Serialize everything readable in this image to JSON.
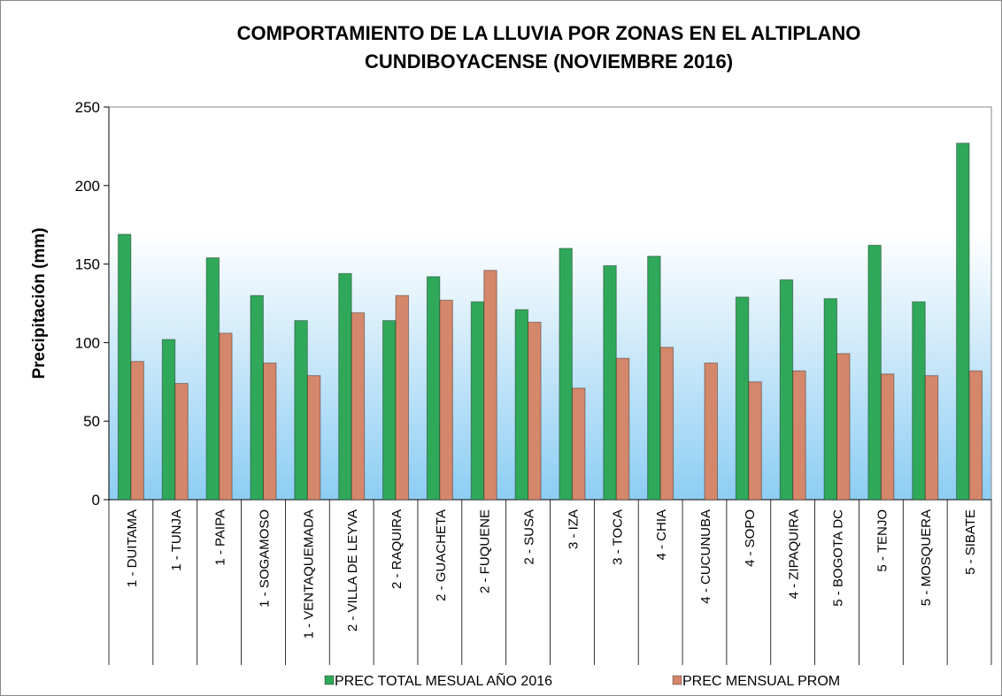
{
  "chart_data": {
    "type": "bar",
    "title": [
      "COMPORTAMIENTO DE LA LLUVIA POR ZONAS EN EL ALTIPLANO",
      "CUNDIBOYACENSE (NOVIEMBRE 2016)"
    ],
    "y_label": "Precipitación  (mm)",
    "categories": [
      "1 - DUITAMA",
      "1 - TUNJA",
      "1 - PAIPA",
      "1 - SOGAMOSO",
      "1 - VENTAQUEMADA",
      "2 - VILLA DE LEYVA",
      "2 - RAQUIRA",
      "2 - GUACHETA",
      "2 - FUQUENE",
      "2 - SUSA",
      "3 - IZA",
      "3 - TOCA",
      "4 - CHIA",
      "4 - CUCUNUBA",
      "4 - SOPO",
      "4 - ZIPAQUIRA",
      "5 - BOGOTA DC",
      "5 - TENJO",
      "5 - MOSQUERA",
      "5 - SIBATE"
    ],
    "series": [
      {
        "name": "PREC TOTAL MESUAL AÑO 2016",
        "color": "#2fa85a",
        "values": [
          169,
          102,
          154,
          130,
          114,
          144,
          114,
          142,
          126,
          121,
          160,
          149,
          155,
          null,
          129,
          140,
          128,
          162,
          126,
          227
        ]
      },
      {
        "name": "PREC MENSUAL PROM",
        "color": "#d4876a",
        "values": [
          88,
          74,
          106,
          87,
          79,
          119,
          130,
          127,
          146,
          113,
          71,
          90,
          97,
          87,
          75,
          82,
          93,
          80,
          79,
          82
        ]
      }
    ],
    "ylim": [
      0,
      250
    ],
    "yticks": [
      0,
      50,
      100,
      150,
      200,
      250
    ],
    "grid": false,
    "legend": "bottom"
  }
}
